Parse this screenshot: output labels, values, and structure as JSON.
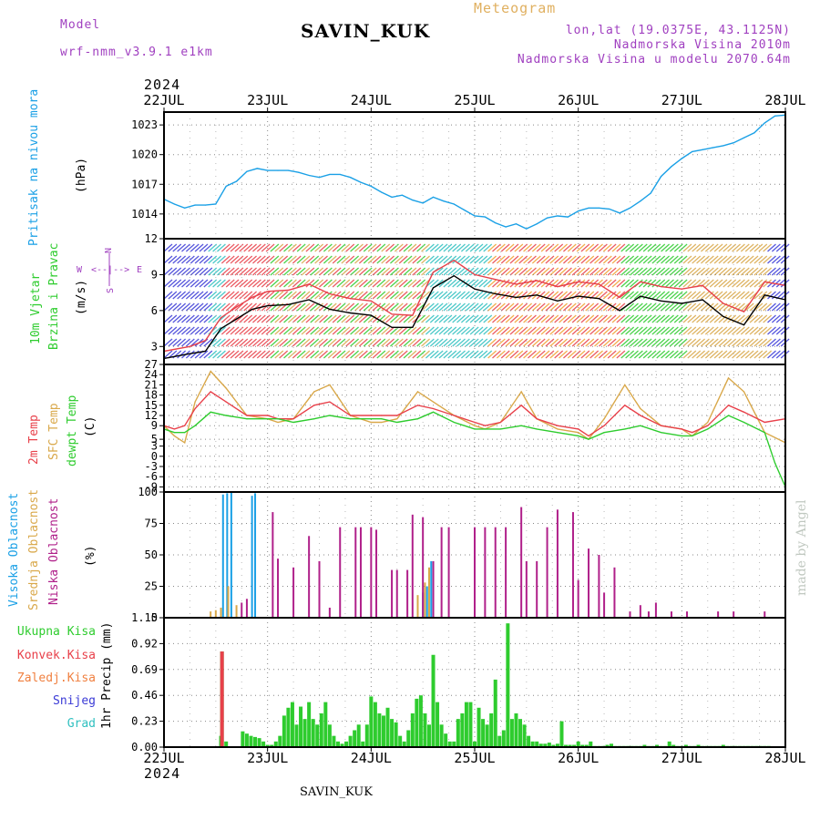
{
  "header": {
    "model_label": "Model",
    "model_name": "wrf-nmm_v3.9.1 e1km",
    "station": "SAVIN_KUK",
    "product": "Meteogram",
    "lonlat": "lon,lat (19.0375E, 43.1125N)",
    "elevation": "Nadmorska Visina 2010m",
    "model_elevation": "Nadmorska Visina u modelu 2070.64m",
    "year_top": "2024",
    "year_bottom": "2024",
    "footer_station": "SAVIN_KUK",
    "credit": "made by Angel"
  },
  "colors": {
    "pressure": "#1aa0e6",
    "temp2m": "#e8404a",
    "sfc": "#d9a84a",
    "dewpt": "#2ecc2e",
    "cloud_high": "#1aa0e6",
    "cloud_mid": "#d9a84a",
    "cloud_low": "#b0208a",
    "rain_total": "#2ecc2e",
    "rain_conv": "#e8404a",
    "rain_frz": "#f08040",
    "snow": "#3a3ad6",
    "hail": "#30c0c0",
    "wind_label": "#2ecc2e",
    "model": "#a040c0",
    "meteogram": "#e0b060",
    "compass": "#a040c0",
    "credit": "#c0c8c0"
  },
  "icons": {
    "compass": "compass-rose-icon",
    "wind": "wind-barb-icon"
  },
  "compass": {
    "n": "N",
    "e": "E",
    "w": "W",
    "s": "S",
    "arrows": "<--|-->"
  },
  "chart_data": [
    {
      "type": "line",
      "name_label": "Pritisak na nivou mora",
      "unit_label": "(hPa)",
      "x_axis": {
        "type": "date",
        "start": "2024-07-22",
        "end": "2024-07-28",
        "tick_labels": [
          "22JUL",
          "23JUL",
          "24JUL",
          "25JUL",
          "26JUL",
          "27JUL",
          "28JUL"
        ]
      },
      "ylim": [
        1011.5,
        1024.3
      ],
      "yticks": [
        1014,
        1017,
        1020,
        1023
      ],
      "grid": true,
      "series": [
        {
          "color": "pressure",
          "x_day": [
            0,
            0.1,
            0.2,
            0.3,
            0.4,
            0.5,
            0.6,
            0.7,
            0.8,
            0.9,
            1.0,
            1.1,
            1.2,
            1.3,
            1.4,
            1.5,
            1.6,
            1.7,
            1.8,
            1.9,
            2.0,
            2.1,
            2.2,
            2.3,
            2.4,
            2.5,
            2.6,
            2.7,
            2.8,
            2.9,
            3.0,
            3.1,
            3.2,
            3.3,
            3.4,
            3.5,
            3.6,
            3.7,
            3.8,
            3.9,
            4.0,
            4.1,
            4.2,
            4.3,
            4.4,
            4.5,
            4.6,
            4.7,
            4.8,
            4.9,
            5.0,
            5.1,
            5.2,
            5.3,
            5.4,
            5.5,
            5.6,
            5.7,
            5.8,
            5.9,
            6.0
          ],
          "values": [
            1015.5,
            1015,
            1014.6,
            1014.9,
            1014.9,
            1015.0,
            1016.8,
            1017.3,
            1018.3,
            1018.6,
            1018.4,
            1018.4,
            1018.4,
            1018.2,
            1017.9,
            1017.7,
            1018.0,
            1018.0,
            1017.7,
            1017.2,
            1016.8,
            1016.2,
            1015.7,
            1015.9,
            1015.4,
            1015.1,
            1015.7,
            1015.3,
            1015.0,
            1014.4,
            1013.8,
            1013.7,
            1013.1,
            1012.7,
            1013.0,
            1012.5,
            1013.0,
            1013.6,
            1013.8,
            1013.7,
            1014.3,
            1014.6,
            1014.6,
            1014.5,
            1014.1,
            1014.6,
            1015.3,
            1016.1,
            1017.8,
            1018.8,
            1019.6,
            1020.3,
            1020.5,
            1020.7,
            1020.9,
            1021.2,
            1021.7,
            1022.2,
            1023.2,
            1023.9,
            1024.0
          ]
        }
      ]
    },
    {
      "type": "line",
      "name_label_1": "10m Vjetar",
      "name_label_2": "Brzina i Pravac",
      "unit_label": "(m/s)",
      "ylim": [
        1.5,
        12
      ],
      "yticks": [
        3,
        6,
        9,
        12
      ],
      "grid": true,
      "series": [
        {
          "color": "#000000",
          "x_day": [
            0,
            0.25,
            0.4,
            0.55,
            0.7,
            0.85,
            1.0,
            1.2,
            1.4,
            1.6,
            1.8,
            2.0,
            2.2,
            2.4,
            2.6,
            2.8,
            3.0,
            3.2,
            3.4,
            3.6,
            3.8,
            4.0,
            4.2,
            4.4,
            4.6,
            4.8,
            5.0,
            5.2,
            5.4,
            5.6,
            5.8,
            6.0
          ],
          "values": [
            2.0,
            2.4,
            2.6,
            4.5,
            5.3,
            6.1,
            6.4,
            6.5,
            6.9,
            6.1,
            5.8,
            5.6,
            4.6,
            4.6,
            7.9,
            8.9,
            7.8,
            7.4,
            7.1,
            7.3,
            6.8,
            7.2,
            7.0,
            6.0,
            7.2,
            6.8,
            6.6,
            6.9,
            5.5,
            4.8,
            7.3,
            6.9
          ]
        },
        {
          "color": "#e8404a",
          "x_day": [
            0,
            0.25,
            0.4,
            0.55,
            0.7,
            0.85,
            1.0,
            1.2,
            1.4,
            1.6,
            1.8,
            2.0,
            2.2,
            2.4,
            2.6,
            2.8,
            3.0,
            3.2,
            3.4,
            3.6,
            3.8,
            4.0,
            4.2,
            4.4,
            4.6,
            4.8,
            5.0,
            5.2,
            5.4,
            5.6,
            5.8,
            6.0
          ],
          "values": [
            2.6,
            3.0,
            3.5,
            5.4,
            6.3,
            7.1,
            7.6,
            7.7,
            8.2,
            7.4,
            7.0,
            6.8,
            5.7,
            5.6,
            9.2,
            10.2,
            9.0,
            8.6,
            8.2,
            8.5,
            8.0,
            8.4,
            8.2,
            7.1,
            8.4,
            8.0,
            7.8,
            8.1,
            6.6,
            5.9,
            8.4,
            8.1
          ]
        }
      ]
    },
    {
      "type": "line",
      "name_label_1": "2m Temp",
      "name_label_2": "SFC Temp",
      "name_label_3": "dewpt Temp",
      "unit_label": "(C)",
      "ylim": [
        -10.5,
        27
      ],
      "yticks": [
        -9,
        -6,
        -3,
        0,
        3,
        5,
        9,
        12,
        15,
        18,
        21,
        24,
        27
      ],
      "grid": true,
      "series": [
        {
          "color": "sfc",
          "x_day": [
            0,
            0.1,
            0.2,
            0.3,
            0.45,
            0.6,
            0.8,
            1.0,
            1.1,
            1.25,
            1.45,
            1.6,
            1.8,
            2.0,
            2.1,
            2.25,
            2.45,
            2.6,
            2.8,
            3.0,
            3.1,
            3.25,
            3.45,
            3.6,
            3.8,
            4.0,
            4.1,
            4.25,
            4.45,
            4.6,
            4.8,
            5.0,
            5.1,
            5.25,
            5.45,
            5.6,
            5.8,
            6.0
          ],
          "values": [
            9,
            6,
            4,
            16,
            25,
            20,
            12,
            11,
            10,
            11,
            19,
            21,
            12,
            10,
            10,
            11,
            19,
            16,
            12,
            9,
            8,
            10,
            19,
            11,
            8,
            7,
            5,
            11,
            21,
            14,
            9,
            8,
            6,
            10,
            23,
            19,
            7,
            4
          ]
        },
        {
          "color": "temp2m",
          "x_day": [
            0,
            0.1,
            0.2,
            0.3,
            0.45,
            0.6,
            0.8,
            1.0,
            1.1,
            1.25,
            1.45,
            1.6,
            1.8,
            2.0,
            2.1,
            2.25,
            2.45,
            2.6,
            2.8,
            3.0,
            3.1,
            3.25,
            3.45,
            3.6,
            3.8,
            4.0,
            4.1,
            4.25,
            4.45,
            4.6,
            4.8,
            5.0,
            5.1,
            5.25,
            5.45,
            5.6,
            5.8,
            6.0
          ],
          "values": [
            9,
            8,
            9,
            14,
            19,
            16,
            12,
            12,
            11,
            11,
            15,
            16,
            12,
            12,
            12,
            12,
            15,
            14,
            12,
            10,
            9,
            10,
            15,
            11,
            9,
            8,
            6,
            9,
            15,
            12,
            9,
            8,
            7,
            9,
            15,
            13,
            10,
            11
          ]
        },
        {
          "color": "dewpt",
          "x_day": [
            0,
            0.1,
            0.2,
            0.3,
            0.45,
            0.6,
            0.8,
            1.0,
            1.1,
            1.25,
            1.45,
            1.6,
            1.8,
            2.0,
            2.1,
            2.25,
            2.45,
            2.6,
            2.8,
            3.0,
            3.1,
            3.25,
            3.45,
            3.6,
            3.8,
            4.0,
            4.1,
            4.25,
            4.45,
            4.6,
            4.8,
            5.0,
            5.1,
            5.25,
            5.45,
            5.6,
            5.8,
            5.9,
            6.0
          ],
          "values": [
            8,
            7,
            7,
            9,
            13,
            12,
            11,
            11,
            11,
            10,
            11,
            12,
            11,
            11,
            11,
            10,
            11,
            13,
            10,
            8,
            8,
            8,
            9,
            8,
            7,
            6,
            5,
            7,
            8,
            9,
            7,
            6,
            6,
            8,
            12,
            10,
            7,
            -2,
            -9
          ]
        }
      ]
    },
    {
      "type": "bar",
      "name_label_1": "Visoka Oblacnost",
      "name_label_2": "Srednja Oblacnost",
      "name_label_3": "Niska Oblacnost",
      "unit_label": "(%)",
      "ylim": [
        0,
        100
      ],
      "yticks": [
        0,
        25,
        50,
        75,
        100
      ],
      "grid": true,
      "series": [
        {
          "color": "cloud_high",
          "x_day": [
            0.55,
            0.57,
            0.61,
            0.65,
            0.85,
            0.88,
            2.5,
            2.54,
            2.58
          ],
          "values": [
            5,
            98,
            99,
            100,
            97,
            99,
            20,
            25,
            45
          ]
        },
        {
          "color": "cloud_mid",
          "x_day": [
            0.45,
            0.5,
            0.55,
            0.62,
            0.7,
            2.45,
            2.52,
            2.56
          ],
          "values": [
            5,
            6,
            8,
            25,
            10,
            18,
            28,
            40
          ]
        },
        {
          "color": "cloud_low",
          "x_day": [
            0.75,
            0.8,
            1.05,
            1.1,
            1.25,
            1.4,
            1.5,
            1.6,
            1.7,
            1.85,
            1.9,
            2.0,
            2.05,
            2.2,
            2.25,
            2.35,
            2.4,
            2.5,
            2.6,
            2.68,
            2.75,
            3.0,
            3.1,
            3.2,
            3.3,
            3.45,
            3.5,
            3.6,
            3.7,
            3.8,
            3.95,
            4.0,
            4.1,
            4.2,
            4.25,
            4.35,
            4.5,
            4.6,
            4.68,
            4.75,
            4.9,
            5.05,
            5.35,
            5.5,
            5.8
          ],
          "values": [
            12,
            15,
            84,
            47,
            40,
            65,
            45,
            8,
            72,
            72,
            72,
            72,
            70,
            38,
            38,
            38,
            82,
            80,
            45,
            72,
            72,
            72,
            72,
            72,
            72,
            88,
            45,
            45,
            72,
            86,
            84,
            30,
            55,
            50,
            20,
            40,
            5,
            10,
            5,
            12,
            5,
            5,
            5,
            5,
            5
          ]
        }
      ]
    },
    {
      "type": "bar",
      "name_label": "1hr Precip (mm)",
      "legend_total": "Ukupna Kisa",
      "legend_conv": "Konvek.Kisa",
      "legend_frz": "Zaledj.Kisa",
      "legend_snow": "Snijeg",
      "legend_hail": "Grad",
      "ylim": [
        0,
        1.15
      ],
      "yticks": [
        0,
        0.23,
        0.46,
        0.69,
        0.92,
        1.15
      ],
      "grid": true,
      "series": [
        {
          "color": "rain_total",
          "x_day": [
            0.55,
            0.56,
            0.6,
            0.76,
            0.8,
            0.84,
            0.88,
            0.92,
            0.96,
            1.0,
            1.04,
            1.08,
            1.12,
            1.16,
            1.2,
            1.24,
            1.28,
            1.32,
            1.36,
            1.4,
            1.44,
            1.48,
            1.52,
            1.56,
            1.6,
            1.64,
            1.68,
            1.72,
            1.76,
            1.8,
            1.84,
            1.88,
            1.92,
            1.96,
            2.0,
            2.04,
            2.08,
            2.12,
            2.16,
            2.2,
            2.24,
            2.28,
            2.32,
            2.36,
            2.4,
            2.44,
            2.48,
            2.52,
            2.56,
            2.6,
            2.64,
            2.68,
            2.72,
            2.76,
            2.8,
            2.84,
            2.88,
            2.92,
            2.96,
            3.0,
            3.04,
            3.08,
            3.12,
            3.16,
            3.2,
            3.24,
            3.28,
            3.32,
            3.36,
            3.4,
            3.44,
            3.48,
            3.52,
            3.56,
            3.6,
            3.64,
            3.68,
            3.72,
            3.76,
            3.8,
            3.84,
            3.88,
            3.92,
            3.96,
            4.0,
            4.04,
            4.08,
            4.12,
            4.16,
            4.2,
            4.24,
            4.28,
            4.32,
            4.36,
            4.4,
            4.44,
            4.48,
            4.52,
            4.56,
            4.6,
            4.64,
            4.68,
            4.72,
            4.76,
            4.8,
            4.84,
            4.88,
            4.92,
            4.96,
            5.0,
            5.04,
            5.08,
            5.12,
            5.16,
            5.2,
            5.24,
            5.28,
            5.32,
            5.36,
            5.4,
            5.44,
            5.48,
            5.52,
            5.56,
            5.6,
            5.64,
            5.68,
            5.72,
            5.76,
            5.8,
            5.84
          ],
          "values": [
            0.1,
            0.85,
            0.05,
            0.14,
            0.12,
            0.1,
            0.09,
            0.08,
            0.05,
            0.02,
            0.02,
            0.05,
            0.1,
            0.28,
            0.35,
            0.4,
            0.2,
            0.36,
            0.25,
            0.4,
            0.25,
            0.2,
            0.3,
            0.4,
            0.2,
            0.1,
            0.05,
            0.03,
            0.05,
            0.1,
            0.15,
            0.2,
            0.05,
            0.2,
            0.45,
            0.4,
            0.3,
            0.28,
            0.35,
            0.25,
            0.22,
            0.1,
            0.05,
            0.15,
            0.3,
            0.43,
            0.46,
            0.3,
            0.2,
            0.82,
            0.4,
            0.2,
            0.12,
            0.05,
            0.05,
            0.25,
            0.3,
            0.4,
            0.4,
            0.05,
            0.35,
            0.25,
            0.2,
            0.3,
            0.6,
            0.1,
            0.15,
            1.1,
            0.25,
            0.3,
            0.25,
            0.2,
            0.1,
            0.05,
            0.05,
            0.03,
            0.03,
            0.04,
            0.02,
            0.03,
            0.23,
            0.02,
            0.02,
            0.02,
            0.05,
            0.02,
            0.02,
            0.05,
            0.01,
            0.01,
            0.01,
            0.02,
            0.03,
            0.01,
            0.01,
            0.01,
            0.01,
            0.01,
            0.01,
            0.01,
            0.02,
            0.01,
            0.01,
            0.02,
            0.01,
            0.01,
            0.05,
            0.02,
            0.01,
            0.01,
            0.02,
            0.01,
            0.01,
            0.02,
            0.01,
            0.01,
            0.01,
            0.01,
            0.01,
            0.02,
            0.01,
            0.01,
            0.01,
            0.01,
            0.01,
            0.01,
            0.01,
            0.01,
            0.01,
            0.01,
            0.01
          ]
        },
        {
          "color": "rain_conv",
          "x_day": [
            0.56
          ],
          "values": [
            0.85
          ]
        }
      ]
    }
  ]
}
